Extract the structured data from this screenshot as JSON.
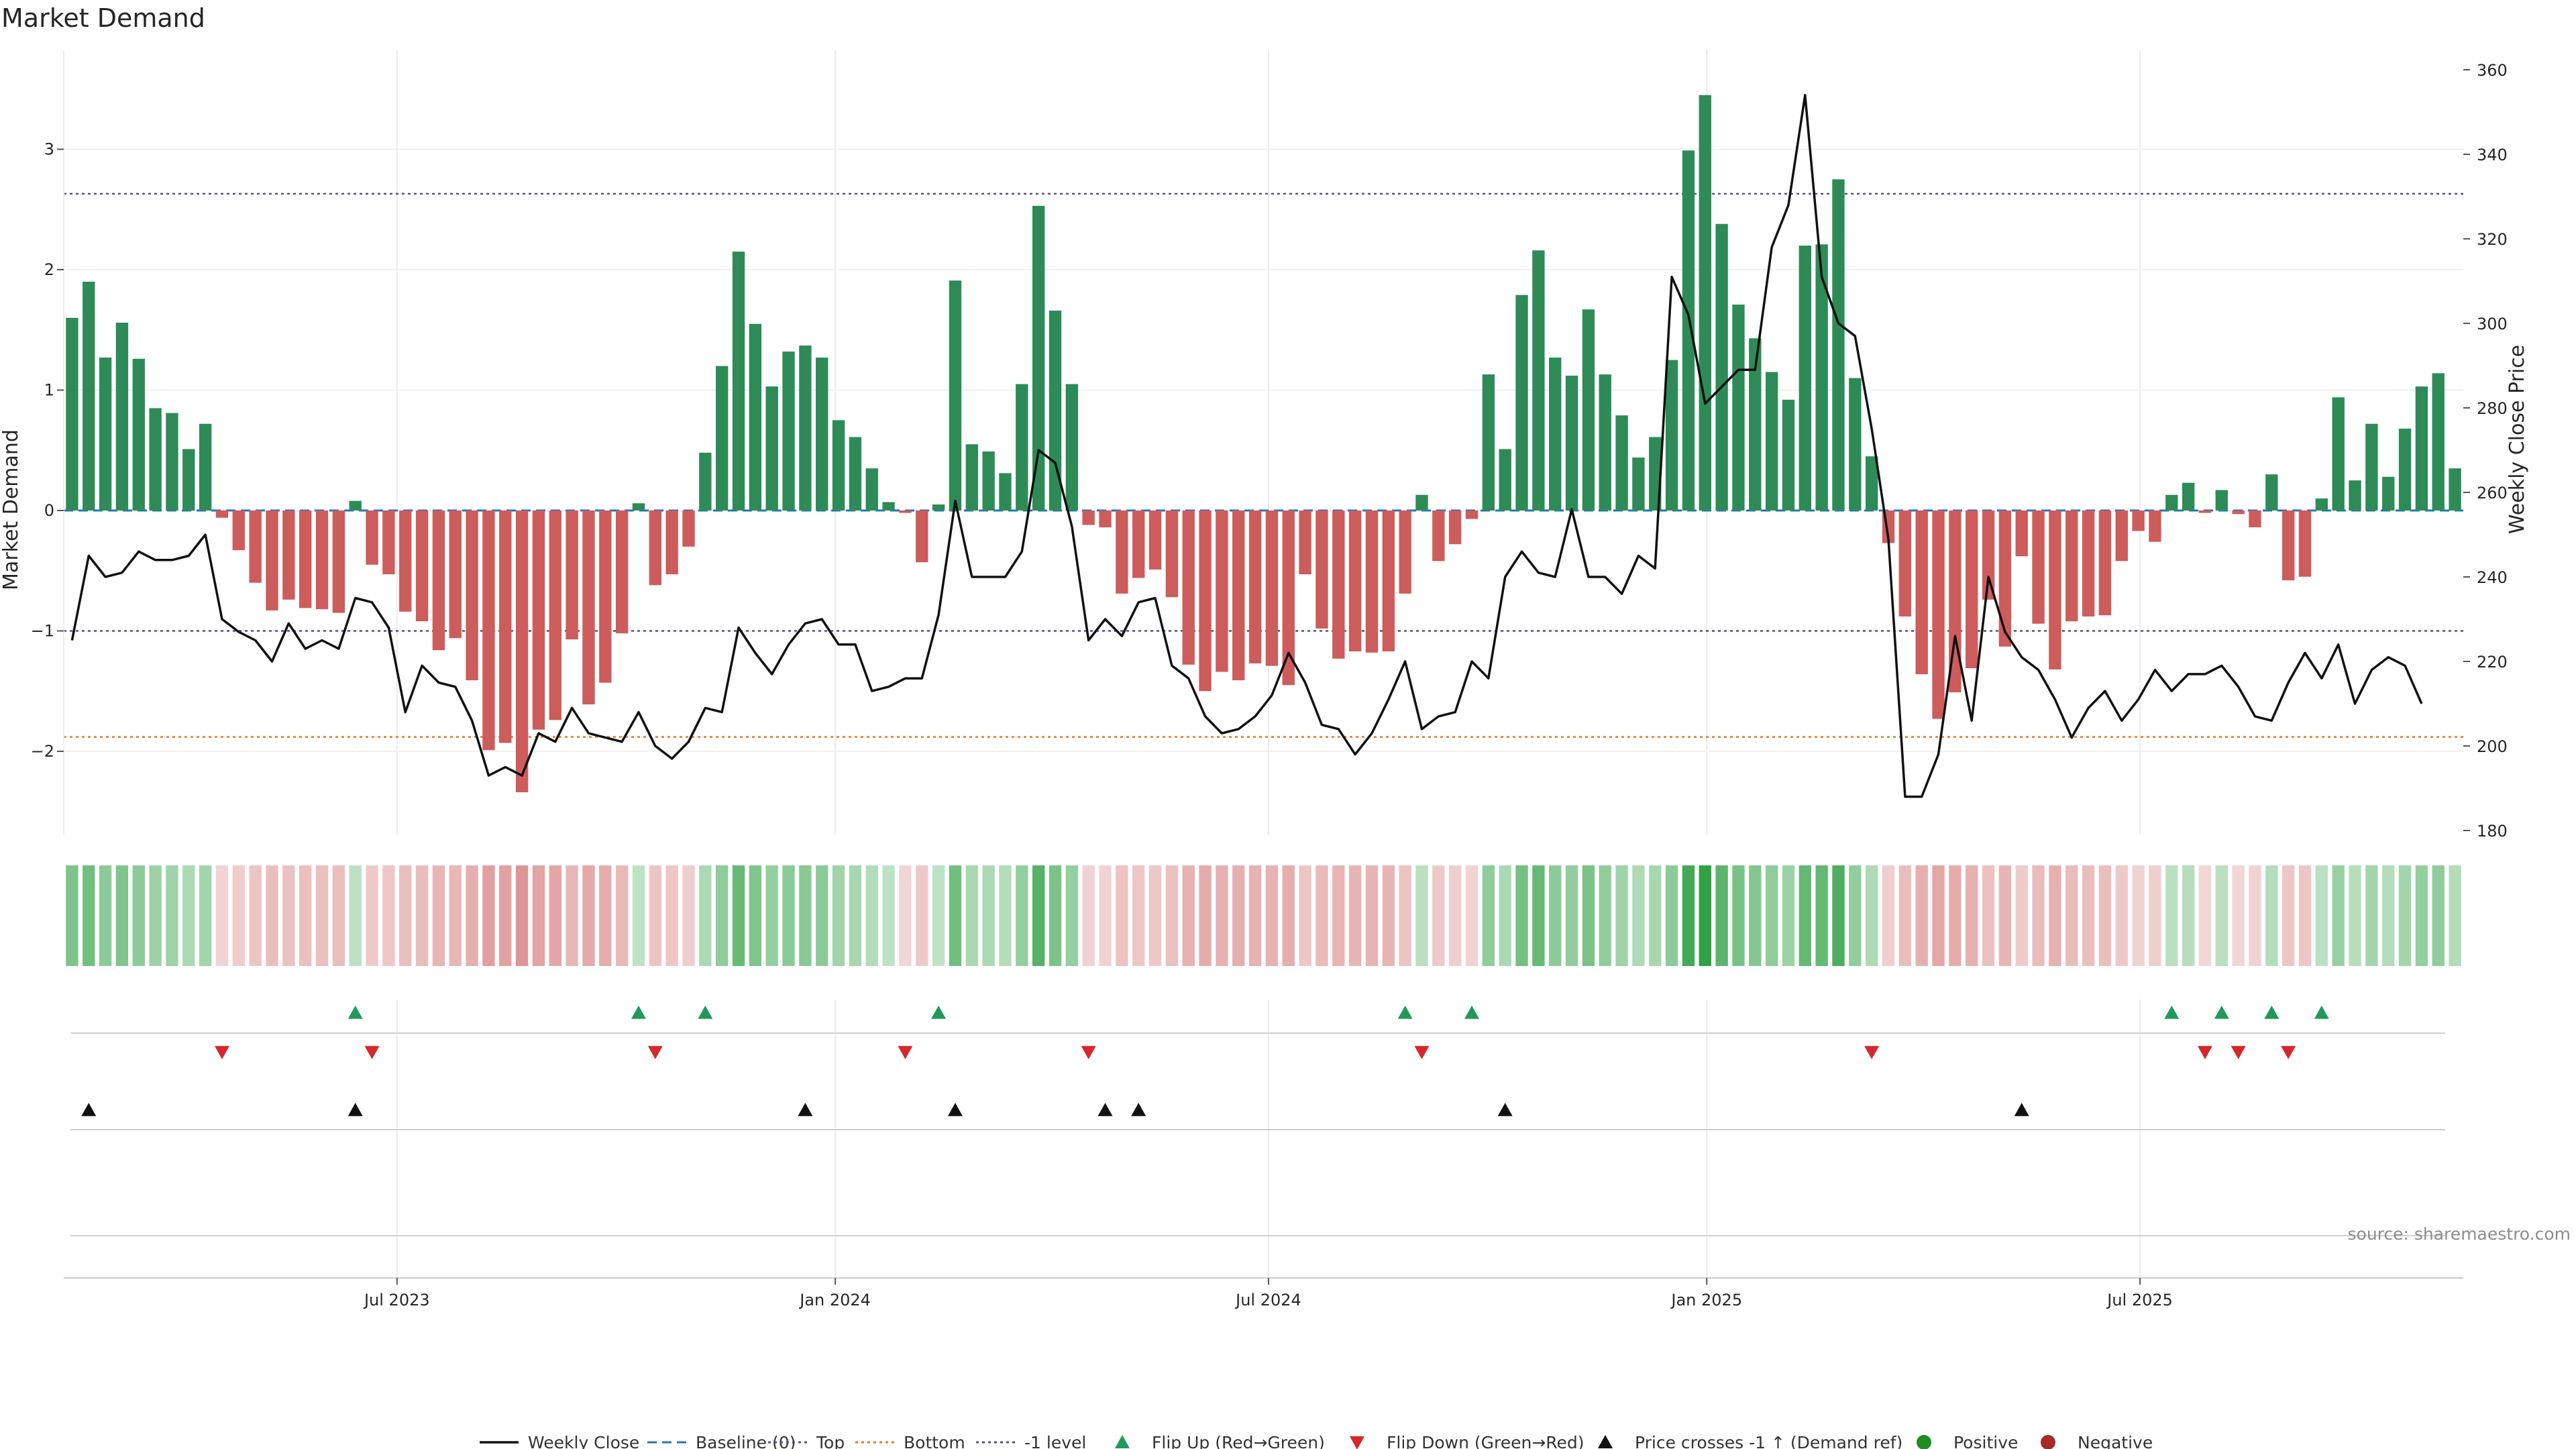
{
  "chart_data": {
    "type": "bar",
    "title": "Market Demand",
    "ylabel": "Market Demand",
    "y2label": "Weekly Close Price",
    "ylim": [
      -2.7,
      3.8
    ],
    "y2lim": [
      175,
      362
    ],
    "yticks": [
      -2,
      -1,
      0,
      1,
      2,
      3
    ],
    "yticklabels": [
      "−2",
      "−1",
      "0",
      "1",
      "2",
      "3"
    ],
    "y2ticks": [
      180,
      200,
      220,
      240,
      260,
      280,
      300,
      320,
      340,
      360
    ],
    "y2ticklabels": [
      "180",
      "200",
      "220",
      "240",
      "260",
      "280",
      "300",
      "320",
      "340",
      "360"
    ],
    "xticks": [
      20,
      46.3,
      72.3,
      98.6,
      124.6
    ],
    "xticklabels": [
      "Jul 2023",
      "Jan 2024",
      "Jul 2024",
      "Jan 2025",
      "Jul 2025"
    ],
    "reference_lines": [
      {
        "name": "Baseline (0)",
        "value": 0,
        "color": "#1f77b4",
        "style": "dashed"
      },
      {
        "name": "Top",
        "value": 2.63,
        "color": "#555577",
        "style": "dotted"
      },
      {
        "name": "Bottom",
        "value": -1.88,
        "color": "#e07b2a",
        "style": "dotted"
      },
      {
        "name": "-1 level",
        "value": -1.0,
        "color": "#555577",
        "style": "dotted"
      }
    ],
    "series": [
      {
        "name": "Market Demand",
        "type": "bar",
        "positive_color": "#2e8b57",
        "negative_color": "#cd5c5c",
        "values": [
          1.6,
          1.9,
          1.27,
          1.56,
          1.26,
          0.85,
          0.81,
          0.51,
          0.72,
          -0.06,
          -0.33,
          -0.6,
          -0.83,
          -0.74,
          -0.81,
          -0.82,
          -0.85,
          0.08,
          -0.45,
          -0.53,
          -0.84,
          -0.92,
          -1.16,
          -1.06,
          -1.41,
          -1.99,
          -1.93,
          -2.34,
          -1.82,
          -1.74,
          -1.07,
          -1.61,
          -1.43,
          -1.02,
          0.06,
          -0.62,
          -0.53,
          -0.3,
          0.48,
          1.2,
          2.15,
          1.55,
          1.03,
          1.32,
          1.37,
          1.27,
          0.75,
          0.61,
          0.35,
          0.07,
          -0.02,
          -0.43,
          0.05,
          1.91,
          0.55,
          0.49,
          0.31,
          1.05,
          2.53,
          1.66,
          1.05,
          -0.12,
          -0.14,
          -0.69,
          -0.56,
          -0.49,
          -0.72,
          -1.28,
          -1.5,
          -1.34,
          -1.41,
          -1.27,
          -1.29,
          -1.45,
          -0.53,
          -0.98,
          -1.23,
          -1.17,
          -1.18,
          -1.17,
          -0.69,
          0.13,
          -0.42,
          -0.28,
          -0.07,
          1.13,
          0.51,
          1.79,
          2.16,
          1.27,
          1.12,
          1.67,
          1.13,
          0.79,
          0.44,
          0.61,
          1.25,
          2.99,
          3.45,
          2.38,
          1.71,
          1.43,
          1.15,
          0.92,
          2.2,
          2.21,
          2.75,
          1.1,
          0.45,
          -0.27,
          -0.88,
          -1.36,
          -1.73,
          -1.51,
          -1.31,
          -0.74,
          -1.13,
          -0.38,
          -0.94,
          -1.32,
          -0.92,
          -0.88,
          -0.87,
          -0.42,
          -0.17,
          -0.26,
          0.13,
          0.23,
          -0.02,
          0.17,
          -0.03,
          -0.14,
          0.3,
          -0.58,
          -0.55,
          0.1,
          0.94,
          0.25,
          0.72,
          0.28,
          0.68,
          1.03,
          1.14,
          0.35
        ]
      },
      {
        "name": "Weekly Close",
        "type": "line",
        "color": "#111111",
        "values": [
          225,
          245,
          240,
          241,
          246,
          244,
          244,
          245,
          250,
          230,
          227,
          225,
          220,
          229,
          223,
          225,
          223,
          235,
          234,
          228,
          208,
          219,
          215,
          214,
          206,
          193,
          195,
          193,
          203,
          201,
          209,
          203,
          202,
          201,
          208,
          200,
          197,
          201,
          209,
          208,
          228,
          222,
          217,
          224,
          229,
          230,
          224,
          224,
          213,
          214,
          216,
          216,
          231,
          258,
          240,
          240,
          240,
          246,
          270,
          267,
          252,
          225,
          230,
          226,
          234,
          235,
          219,
          216,
          207,
          203,
          204,
          207,
          212,
          222,
          215,
          205,
          204,
          198,
          203,
          211,
          220,
          204,
          207,
          208,
          220,
          216,
          240,
          246,
          241,
          240,
          256,
          240,
          240,
          236,
          245,
          242,
          311,
          302,
          281,
          285,
          289,
          289,
          318,
          328,
          354,
          311,
          300,
          297,
          275,
          249,
          188,
          188,
          198,
          226,
          206,
          240,
          227,
          221,
          218,
          211,
          202,
          209,
          213,
          206,
          211,
          218,
          213,
          217,
          217,
          219,
          214,
          207,
          206,
          215,
          222,
          216,
          224,
          210,
          218,
          221,
          219,
          210
        ]
      }
    ],
    "signals": {
      "flip_up_indices": [
        17,
        34,
        38,
        52,
        80,
        84,
        126,
        129,
        132,
        135
      ],
      "flip_down_indices": [
        9,
        18,
        35,
        50,
        61,
        81,
        108,
        128,
        130,
        133
      ],
      "price_cross_up_indices": [
        1,
        17,
        44,
        53,
        62,
        64,
        86,
        117
      ]
    },
    "legend": {
      "placement": "bottom-center",
      "entries": [
        "Weekly Close",
        "Baseline (0)",
        "Top",
        "Bottom",
        "-1 level",
        "Flip Up (Red→Green)",
        "Flip Down (Green→Red)",
        "Price crosses -1 ↑ (Demand ref)",
        "Positive",
        "Negative"
      ]
    },
    "source": "source: sharemaestro.com"
  }
}
